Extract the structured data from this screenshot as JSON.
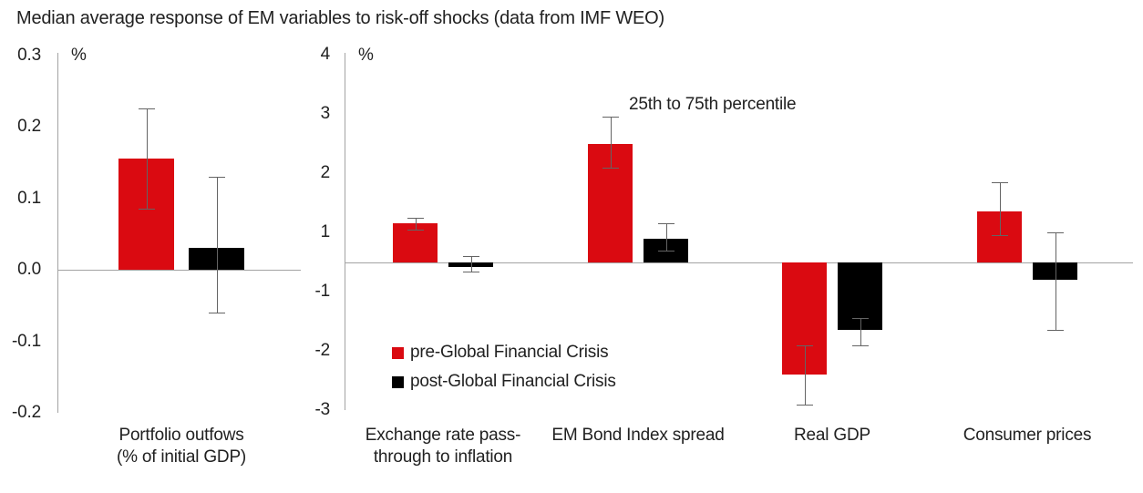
{
  "title": "Median average response of EM variables to risk-off shocks (data from IMF WEO)",
  "annotation": "25th to 75th percentile",
  "colors": {
    "pre": "#da0a11",
    "post": "#000000",
    "axis": "#a3a3a3",
    "error_bar": "#646464",
    "text": "#212121"
  },
  "legend": [
    {
      "label": "pre-Global Financial Crisis",
      "color_key": "pre"
    },
    {
      "label": "post-Global Financial Crisis",
      "color_key": "post"
    }
  ],
  "chart_data": [
    {
      "type": "bar",
      "panel": "left",
      "ylabel": "%",
      "grid": false,
      "ylim": [
        -0.2,
        0.3
      ],
      "yticks": [
        0.3,
        0.2,
        0.1,
        0.0,
        -0.1,
        -0.2
      ],
      "ytick_labels": [
        "0.3",
        "0.2",
        "0.1",
        "0.0",
        "-0.1",
        "-0.2"
      ],
      "categories": [
        "Portfolio outfows\n(% of initial GDP)"
      ],
      "series": [
        {
          "name": "pre-Global Financial Crisis",
          "values": [
            0.155
          ],
          "error_low": [
            0.085
          ],
          "error_high": [
            0.225
          ]
        },
        {
          "name": "post-Global Financial Crisis",
          "values": [
            0.03
          ],
          "error_low": [
            -0.06
          ],
          "error_high": [
            0.13
          ]
        }
      ]
    },
    {
      "type": "bar",
      "panel": "right",
      "ylabel": "%",
      "grid": false,
      "ylim": [
        -3,
        4
      ],
      "yticks": [
        4,
        3,
        2,
        1,
        -1,
        -2,
        -3
      ],
      "ytick_labels": [
        "4",
        "3",
        "2",
        "1",
        "-1",
        "-2",
        "-3"
      ],
      "categories": [
        "Exchange rate pass-\nthrough to inflation",
        "EM Bond Index spread",
        "Real GDP",
        "Consumer prices"
      ],
      "series": [
        {
          "name": "pre-Global Financial Crisis",
          "values": [
            1.15,
            2.5,
            -2.4,
            1.35
          ],
          "error_low": [
            1.05,
            2.1,
            -2.9,
            0.9
          ],
          "error_high": [
            1.25,
            2.95,
            -1.9,
            1.85
          ]
        },
        {
          "name": "post-Global Financial Crisis",
          "values": [
            -0.15,
            0.8,
            -1.65,
            -0.6
          ],
          "error_low": [
            -0.3,
            0.4,
            -1.9,
            -1.65
          ],
          "error_high": [
            0.2,
            1.15,
            -1.45,
            1.0
          ]
        }
      ]
    }
  ]
}
